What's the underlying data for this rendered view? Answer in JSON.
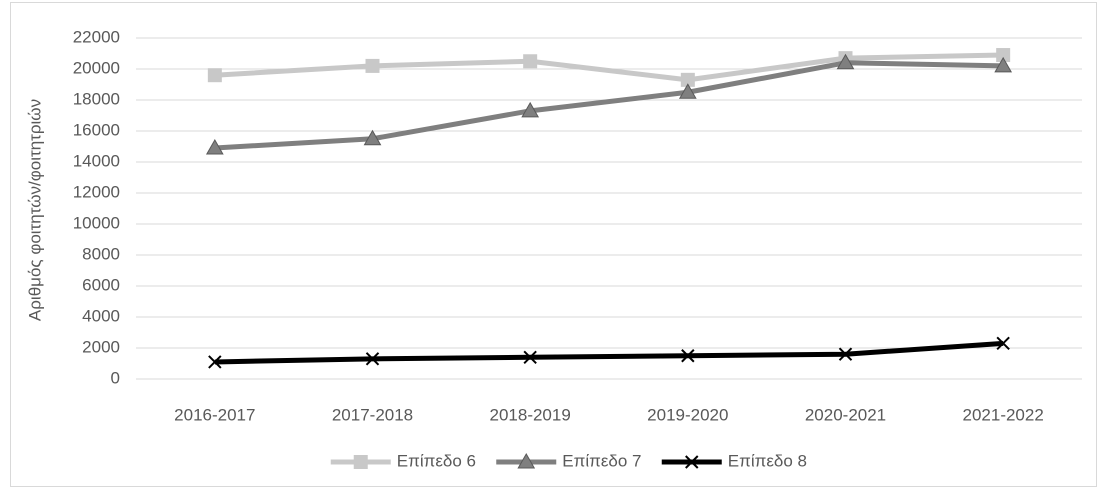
{
  "chart_data": {
    "type": "line",
    "y_label": "Αριθμός φοιτητών/φοιτητριών",
    "categories": [
      "2016-2017",
      "2017-2018",
      "2018-2019",
      "2019-2020",
      "2020-2021",
      "2021-2022"
    ],
    "series": [
      {
        "name": "Επίπεδο 6",
        "color": "#c8c8c8",
        "marker": "square",
        "values": [
          19600,
          20200,
          20500,
          19300,
          20700,
          20900
        ]
      },
      {
        "name": "Επίπεδο 7",
        "color": "#7f7f7f",
        "marker": "triangle",
        "values": [
          14900,
          15500,
          17300,
          18500,
          20400,
          20200
        ]
      },
      {
        "name": "Επίπεδο 8",
        "color": "#000000",
        "marker": "x",
        "values": [
          1100,
          1300,
          1400,
          1500,
          1600,
          2300
        ]
      }
    ],
    "ylim": [
      0,
      22000
    ],
    "yticks": [
      0,
      2000,
      4000,
      6000,
      8000,
      10000,
      12000,
      14000,
      16000,
      18000,
      20000,
      22000
    ],
    "grid": true,
    "legend": "bottom"
  }
}
